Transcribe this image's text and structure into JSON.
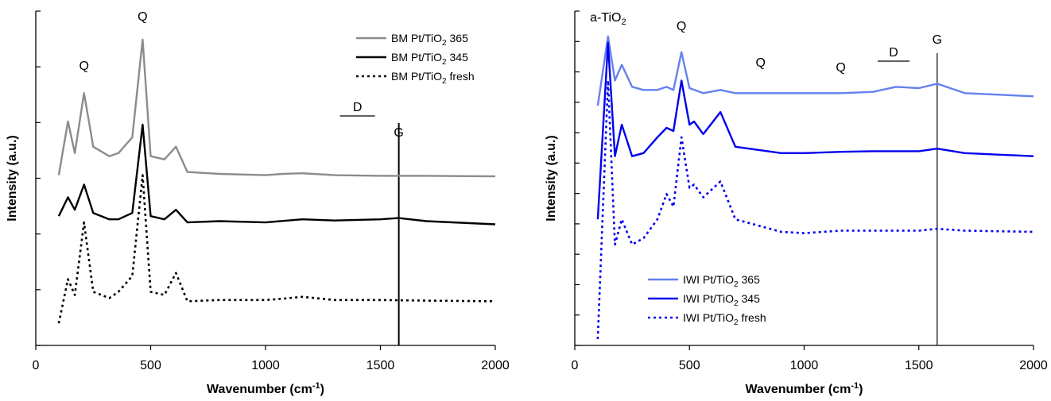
{
  "figure": {
    "xlabel": "Wavenumber (cm",
    "xlabel_sup": "-1",
    "xlabel_close": ")",
    "ylabel": "Intensity (a.u.)"
  },
  "chart_data": [
    {
      "type": "line",
      "xlabel": "Wavenumber (cm-1)",
      "ylabel": "Intensity (a.u.)",
      "xlim": [
        0,
        2000
      ],
      "xticks": [
        0,
        500,
        1000,
        1500,
        2000
      ],
      "yticks_labeled": false,
      "grid": false,
      "legend_position": "top-right",
      "vertical_line_x": 1580,
      "annotations": [
        {
          "text": "Q",
          "x": 210
        },
        {
          "text": "Q",
          "x": 465
        },
        {
          "text": "D",
          "x": 1400
        },
        {
          "text": "G",
          "x": 1580
        }
      ],
      "series": [
        {
          "name": "BM Pt/TiO2 365",
          "name_base": "BM Pt/TiO",
          "name_sub": "2",
          "name_tail": " 365",
          "color": "#8c8c8c",
          "style": "solid",
          "points": [
            [
              100,
              2.7
            ],
            [
              140,
              3.55
            ],
            [
              170,
              3.05
            ],
            [
              210,
              4.0
            ],
            [
              250,
              3.15
            ],
            [
              320,
              3.0
            ],
            [
              360,
              3.05
            ],
            [
              420,
              3.3
            ],
            [
              465,
              4.85
            ],
            [
              500,
              3.0
            ],
            [
              560,
              2.95
            ],
            [
              610,
              3.15
            ],
            [
              660,
              2.75
            ],
            [
              800,
              2.72
            ],
            [
              1000,
              2.7
            ],
            [
              1075,
              2.72
            ],
            [
              1160,
              2.73
            ],
            [
              1300,
              2.7
            ],
            [
              1500,
              2.69
            ],
            [
              1700,
              2.69
            ],
            [
              2000,
              2.68
            ]
          ]
        },
        {
          "name": "BM Pt/TiO2 345",
          "name_base": "BM Pt/TiO",
          "name_sub": "2",
          "name_tail": " 345",
          "color": "#000000",
          "style": "solid",
          "points": [
            [
              100,
              2.05
            ],
            [
              140,
              2.35
            ],
            [
              170,
              2.15
            ],
            [
              210,
              2.55
            ],
            [
              250,
              2.1
            ],
            [
              320,
              2.0
            ],
            [
              360,
              2.0
            ],
            [
              420,
              2.1
            ],
            [
              465,
              3.5
            ],
            [
              500,
              2.05
            ],
            [
              560,
              2.0
            ],
            [
              610,
              2.15
            ],
            [
              660,
              1.95
            ],
            [
              800,
              1.97
            ],
            [
              1000,
              1.95
            ],
            [
              1160,
              2.0
            ],
            [
              1300,
              1.98
            ],
            [
              1500,
              2.0
            ],
            [
              1580,
              2.02
            ],
            [
              1700,
              1.97
            ],
            [
              2000,
              1.92
            ]
          ]
        },
        {
          "name": "BM Pt/TiO2 fresh",
          "name_base": "BM Pt/TiO",
          "name_sub": "2",
          "name_tail": " fresh",
          "color": "#000000",
          "style": "dashed",
          "points": [
            [
              100,
              0.35
            ],
            [
              140,
              1.05
            ],
            [
              170,
              0.8
            ],
            [
              210,
              1.95
            ],
            [
              250,
              0.85
            ],
            [
              320,
              0.75
            ],
            [
              360,
              0.85
            ],
            [
              420,
              1.1
            ],
            [
              465,
              2.7
            ],
            [
              500,
              0.85
            ],
            [
              560,
              0.8
            ],
            [
              610,
              1.15
            ],
            [
              660,
              0.7
            ],
            [
              800,
              0.72
            ],
            [
              1000,
              0.72
            ],
            [
              1075,
              0.74
            ],
            [
              1160,
              0.77
            ],
            [
              1300,
              0.72
            ],
            [
              1500,
              0.72
            ],
            [
              1700,
              0.71
            ],
            [
              2000,
              0.7
            ]
          ]
        }
      ]
    },
    {
      "type": "line",
      "xlabel": "Wavenumber (cm-1)",
      "ylabel": "Intensity (a.u.)",
      "xlim": [
        0,
        2000
      ],
      "xticks": [
        0,
        500,
        1000,
        1500,
        2000
      ],
      "yticks_labeled": false,
      "grid": false,
      "legend_position": "bottom-center",
      "vertical_line_x": 1580,
      "annotations": [
        {
          "text": "a-TiO",
          "sub": "2",
          "x": 145
        },
        {
          "text": "Q",
          "x": 465
        },
        {
          "text": "Q",
          "x": 810
        },
        {
          "text": "Q",
          "x": 1160
        },
        {
          "text": "D",
          "x": 1390
        },
        {
          "text": "G",
          "x": 1580
        }
      ],
      "series": [
        {
          "name": "IWI Pt/TiO2 365",
          "name_base": "IWI Pt/TiO",
          "name_sub": "2",
          "name_tail": " 365",
          "color": "#6680ee",
          "style": "solid",
          "points": [
            [
              100,
              3.8
            ],
            [
              145,
              4.9
            ],
            [
              175,
              4.2
            ],
            [
              205,
              4.45
            ],
            [
              250,
              4.1
            ],
            [
              300,
              4.05
            ],
            [
              360,
              4.05
            ],
            [
              400,
              4.1
            ],
            [
              430,
              4.05
            ],
            [
              465,
              4.65
            ],
            [
              500,
              4.08
            ],
            [
              560,
              4.0
            ],
            [
              635,
              4.05
            ],
            [
              700,
              4.0
            ],
            [
              800,
              4.0
            ],
            [
              1000,
              4.0
            ],
            [
              1160,
              4.0
            ],
            [
              1300,
              4.02
            ],
            [
              1400,
              4.1
            ],
            [
              1500,
              4.08
            ],
            [
              1580,
              4.15
            ],
            [
              1700,
              4.0
            ],
            [
              2000,
              3.95
            ]
          ]
        },
        {
          "name": "IWI Pt/TiO2 345",
          "name_base": "IWI Pt/TiO",
          "name_sub": "2",
          "name_tail": " 345",
          "color": "#0000ee",
          "style": "solid",
          "points": [
            [
              100,
              2.0
            ],
            [
              145,
              4.8
            ],
            [
              175,
              3.0
            ],
            [
              205,
              3.5
            ],
            [
              250,
              3.0
            ],
            [
              300,
              3.05
            ],
            [
              360,
              3.3
            ],
            [
              400,
              3.45
            ],
            [
              430,
              3.4
            ],
            [
              465,
              4.2
            ],
            [
              500,
              3.5
            ],
            [
              520,
              3.55
            ],
            [
              560,
              3.35
            ],
            [
              635,
              3.7
            ],
            [
              700,
              3.15
            ],
            [
              800,
              3.1
            ],
            [
              900,
              3.05
            ],
            [
              1000,
              3.05
            ],
            [
              1160,
              3.07
            ],
            [
              1300,
              3.08
            ],
            [
              1500,
              3.08
            ],
            [
              1580,
              3.12
            ],
            [
              1700,
              3.05
            ],
            [
              2000,
              3.0
            ]
          ]
        },
        {
          "name": "IWI Pt/TiO2 fresh",
          "name_base": "IWI Pt/TiO",
          "name_sub": "2",
          "name_tail": " fresh",
          "color": "#0000ee",
          "style": "dashed",
          "points": [
            [
              100,
              0.1
            ],
            [
              145,
              4.2
            ],
            [
              175,
              1.6
            ],
            [
              205,
              2.0
            ],
            [
              250,
              1.6
            ],
            [
              300,
              1.7
            ],
            [
              360,
              2.0
            ],
            [
              400,
              2.4
            ],
            [
              430,
              2.2
            ],
            [
              465,
              3.3
            ],
            [
              500,
              2.5
            ],
            [
              520,
              2.55
            ],
            [
              560,
              2.35
            ],
            [
              635,
              2.6
            ],
            [
              700,
              2.0
            ],
            [
              800,
              1.9
            ],
            [
              900,
              1.8
            ],
            [
              1000,
              1.78
            ],
            [
              1160,
              1.82
            ],
            [
              1300,
              1.82
            ],
            [
              1500,
              1.82
            ],
            [
              1580,
              1.85
            ],
            [
              1700,
              1.82
            ],
            [
              2000,
              1.8
            ]
          ]
        }
      ]
    }
  ]
}
